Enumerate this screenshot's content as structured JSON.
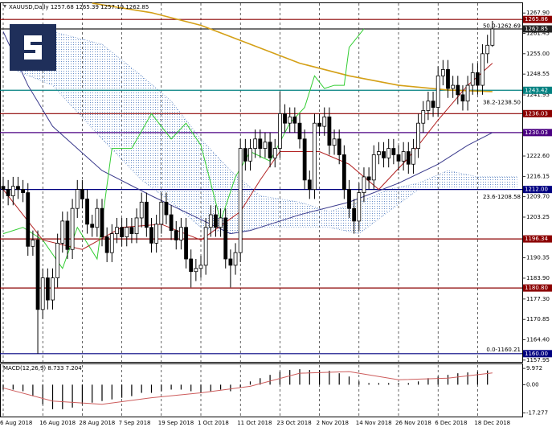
{
  "chart_data": {
    "type": "candlestick",
    "title": "XAUUSD,Daily  1257.68 1265.39 1257.19 1262.85",
    "categories": [
      "6 Aug 2018",
      null,
      null,
      null,
      null,
      null,
      null,
      null,
      "16 Aug 2018",
      null,
      null,
      null,
      null,
      null,
      null,
      null,
      "28 Aug 2018",
      null,
      null,
      null,
      null,
      null,
      null,
      null,
      "7 Sep 2018",
      null,
      null,
      null,
      null,
      null,
      null,
      null,
      "19 Sep 2018",
      null,
      null,
      null,
      null,
      null,
      null,
      null,
      "1 Oct 2018",
      null,
      null,
      null,
      null,
      null,
      null,
      null,
      "11 Oct 2018",
      null,
      null,
      null,
      null,
      null,
      null,
      null,
      "23 Oct 2018",
      null,
      null,
      null,
      null,
      null,
      null,
      null,
      "2 Nov 2018",
      null,
      null,
      null,
      null,
      null,
      null,
      null,
      "14 Nov 2018",
      null,
      null,
      null,
      null,
      null,
      null,
      null,
      "26 Nov 2018",
      null,
      null,
      null,
      null,
      null,
      null,
      null,
      "6 Dec 2018",
      null,
      null,
      null,
      null,
      null,
      null,
      null,
      "18 Dec 2018",
      null,
      null,
      null
    ],
    "open": [
      1213,
      1212,
      1210,
      1213,
      1212,
      1211,
      1194,
      1196,
      1174,
      1184,
      1177,
      1184,
      1195,
      1202,
      1193,
      1206,
      1212,
      1209,
      1201,
      1200,
      1206,
      1197,
      1192,
      1198,
      1200,
      1197,
      1200,
      1198,
      1203,
      1208,
      1200,
      1195,
      1201,
      1208,
      1204,
      1199,
      1196,
      1200,
      1190,
      1186,
      1187,
      1188,
      1200,
      1204,
      1200,
      1203,
      1190,
      1188,
      1192,
      1225,
      1221,
      1225,
      1228,
      1225,
      1227,
      1222,
      1225,
      1236,
      1233,
      1235,
      1233,
      1228,
      1215,
      1212,
      1233,
      1232,
      1235,
      1226,
      1228,
      1223,
      1212,
      1206,
      1202,
      1211,
      1216,
      1215,
      1223,
      1224,
      1222,
      1225,
      1223,
      1221,
      1224,
      1220,
      1225,
      1233,
      1237,
      1240,
      1238,
      1248,
      1250,
      1244,
      1245,
      1242,
      1240,
      1245,
      1249,
      1245,
      1255,
      1257.68
    ],
    "high": [
      1216,
      1215,
      1216,
      1216,
      1215,
      1214,
      1199,
      1199,
      1187,
      1187,
      1187,
      1198,
      1205,
      1205,
      1209,
      1215,
      1215,
      1212,
      1204,
      1209,
      1209,
      1200,
      1201,
      1203,
      1203,
      1203,
      1203,
      1206,
      1211,
      1211,
      1203,
      1204,
      1211,
      1211,
      1207,
      1202,
      1203,
      1203,
      1193,
      1190,
      1191,
      1203,
      1207,
      1207,
      1206,
      1206,
      1193,
      1195,
      1228,
      1228,
      1228,
      1231,
      1231,
      1230,
      1230,
      1228,
      1243,
      1239,
      1238,
      1238,
      1236,
      1231,
      1218,
      1236,
      1236,
      1238,
      1238,
      1231,
      1231,
      1226,
      1215,
      1209,
      1214,
      1219,
      1219,
      1226,
      1227,
      1227,
      1228,
      1228,
      1226,
      1227,
      1227,
      1228,
      1236,
      1240,
      1243,
      1243,
      1251,
      1253,
      1253,
      1248,
      1248,
      1245,
      1248,
      1252,
      1252,
      1258,
      1261,
      1265.39
    ],
    "low": [
      1209,
      1207,
      1207,
      1209,
      1208,
      1191,
      1191,
      1160,
      1171,
      1174,
      1174,
      1181,
      1192,
      1190,
      1190,
      1203,
      1206,
      1198,
      1197,
      1197,
      1194,
      1189,
      1189,
      1195,
      1194,
      1194,
      1195,
      1195,
      1200,
      1197,
      1192,
      1192,
      1198,
      1201,
      1196,
      1193,
      1193,
      1187,
      1181,
      1183,
      1184,
      1185,
      1197,
      1197,
      1197,
      1187,
      1181,
      1185,
      1189,
      1218,
      1218,
      1222,
      1222,
      1222,
      1219,
      1219,
      1222,
      1230,
      1230,
      1230,
      1225,
      1212,
      1209,
      1209,
      1229,
      1229,
      1223,
      1223,
      1220,
      1209,
      1203,
      1198,
      1199,
      1208,
      1212,
      1212,
      1220,
      1219,
      1219,
      1220,
      1218,
      1218,
      1217,
      1217,
      1222,
      1230,
      1234,
      1235,
      1235,
      1245,
      1241,
      1241,
      1239,
      1237,
      1237,
      1242,
      1242,
      1242,
      1252,
      1257.19
    ],
    "close": [
      1212,
      1210,
      1213,
      1212,
      1211,
      1194,
      1196,
      1174,
      1184,
      1177,
      1184,
      1195,
      1202,
      1193,
      1206,
      1212,
      1209,
      1201,
      1200,
      1206,
      1197,
      1192,
      1198,
      1200,
      1197,
      1200,
      1198,
      1203,
      1208,
      1200,
      1195,
      1201,
      1208,
      1204,
      1199,
      1196,
      1200,
      1190,
      1186,
      1187,
      1188,
      1200,
      1204,
      1200,
      1203,
      1190,
      1188,
      1192,
      1225,
      1221,
      1225,
      1228,
      1225,
      1227,
      1222,
      1225,
      1236,
      1233,
      1235,
      1233,
      1228,
      1215,
      1212,
      1233,
      1232,
      1235,
      1226,
      1228,
      1223,
      1212,
      1206,
      1202,
      1211,
      1216,
      1215,
      1223,
      1224,
      1222,
      1225,
      1223,
      1221,
      1224,
      1220,
      1225,
      1233,
      1237,
      1240,
      1238,
      1248,
      1250,
      1244,
      1245,
      1242,
      1240,
      1245,
      1249,
      1245,
      1255,
      1257.68,
      1262.85
    ],
    "up_color": "#ffffff",
    "down_color": "#000000",
    "ylim": [
      1157.4,
      1271.0
    ],
    "yticks": [
      {
        "value": 1267.9,
        "label": "1267.90"
      },
      1261.45,
      {
        "value": 1255,
        "label": "1255.00"
      },
      1248.55,
      1241.95,
      {
        "value": 1222.6,
        "label": "1222.60"
      },
      1216.15,
      {
        "value": 1209.7,
        "label": "1209.70"
      },
      1203.25,
      1190.35,
      {
        "value": 1183.9,
        "label": "1183.90"
      },
      {
        "value": 1177.3,
        "label": "1177.30"
      },
      1170.85,
      {
        "value": 1164.4,
        "label": "1164.40"
      },
      1157.95
    ],
    "levels": [
      {
        "value": 1265.86,
        "color": "#8b0000"
      },
      {
        "value": 1262.85,
        "color": "#222222"
      },
      {
        "value": 1243.42,
        "color": "#008080"
      },
      {
        "value": 1236.03,
        "color": "#8b0000"
      },
      {
        "value": 1230.03,
        "color": "#4b0082"
      },
      {
        "value": 1212,
        "label": "1212.00",
        "color": "#000080"
      },
      {
        "value": 1196.34,
        "color": "#8b0000"
      },
      {
        "value": 1180.8,
        "label": "1180.80",
        "color": "#8b0000"
      },
      {
        "value": 1160,
        "label": "1160.00",
        "color": "#000080"
      }
    ],
    "fib": [
      {
        "value": 1262.69,
        "label": "50.0-1262.69"
      },
      {
        "value": 1238.5,
        "label": "38.2-1238.50"
      },
      {
        "value": 1208.58,
        "label": "23.6-1208.58"
      },
      {
        "value": 1160.21,
        "label": "0.0-1160.21"
      }
    ],
    "lines": [
      {
        "color": "#d4a017",
        "x": [
          18,
          30,
          40,
          50,
          60,
          70,
          80,
          90,
          99
        ],
        "values": [
          1271,
          1268,
          1264,
          1258,
          1252,
          1248,
          1245,
          1243.5,
          1243
        ]
      },
      {
        "color": "#3a3a8c",
        "x": [
          0,
          5,
          10,
          20,
          30,
          38,
          46,
          50,
          60,
          70,
          80,
          88,
          94,
          99
        ],
        "values": [
          1262,
          1245,
          1232,
          1218,
          1210,
          1204,
          1198,
          1199,
          1204,
          1208,
          1214,
          1220,
          1226,
          1230
        ]
      },
      {
        "color": "#32cd32",
        "x": [
          0,
          4,
          8,
          12,
          15,
          19,
          22,
          26,
          30,
          34,
          37,
          40,
          44,
          47,
          50,
          54,
          58,
          61,
          63,
          65,
          67,
          69,
          70,
          73
        ],
        "values": [
          1198,
          1200,
          1196,
          1187,
          1200,
          1190,
          1225,
          1225,
          1236,
          1228,
          1233,
          1226,
          1202,
          1216,
          1224,
          1221,
          1233,
          1238,
          1248,
          1244,
          1245,
          1245,
          1257,
          1262.85
        ]
      },
      {
        "color": "#b22222",
        "x": [
          0,
          8,
          16,
          24,
          32,
          40,
          48,
          52,
          56,
          64,
          70,
          76,
          82,
          88,
          94,
          99
        ],
        "values": [
          1212,
          1196,
          1193,
          1200,
          1201,
          1196,
          1205,
          1215,
          1224,
          1224,
          1220,
          1212,
          1222,
          1234,
          1245,
          1252
        ]
      }
    ],
    "cloud": {
      "color": "#6a8fc8",
      "upper": {
        "x": [
          2,
          10,
          20,
          28,
          34,
          40,
          46,
          52,
          60,
          66,
          72,
          78,
          84,
          90,
          96,
          104
        ],
        "values": [
          1262,
          1262,
          1258,
          1248,
          1240,
          1228,
          1218,
          1210,
          1208,
          1205,
          1208,
          1212,
          1214,
          1218,
          1216,
          1216
        ]
      },
      "lower": {
        "x": [
          2,
          10,
          20,
          28,
          34,
          40,
          46,
          52,
          60,
          66,
          72,
          78,
          84,
          90,
          96,
          104
        ],
        "values": [
          1250,
          1245,
          1228,
          1215,
          1208,
          1200,
          1198,
          1200,
          1200,
          1200,
          1198,
          1205,
          1212,
          1212,
          1212,
          1212
        ]
      }
    },
    "macd": {
      "title": "MACD(12,26,9) 8.733 7.204",
      "ylim": [
        -19,
        11.5
      ],
      "yticks": [
        9.972,
        {
          "value": 0,
          "label": "0.00"
        },
        -17.277
      ],
      "histogram": {
        "color": "#000000",
        "x": [
          0,
          2,
          4,
          6,
          8,
          10,
          12,
          14,
          16,
          18,
          20,
          22,
          24,
          26,
          28,
          30,
          32,
          34,
          36,
          38,
          40,
          42,
          44,
          46,
          48,
          50,
          52,
          54,
          56,
          58,
          60,
          62,
          64,
          66,
          68,
          70,
          72,
          74,
          76,
          78,
          80,
          82,
          84,
          86,
          88,
          90,
          92,
          94,
          96,
          98
        ],
        "values": [
          -3,
          -3,
          -4,
          -7,
          -12,
          -15,
          -15,
          -14,
          -12,
          -11,
          -10,
          -9,
          -8,
          -7,
          -5,
          -5,
          -4,
          -3,
          -3,
          -4,
          -5,
          -4,
          -3,
          -4,
          -2,
          2,
          4,
          6,
          8,
          9,
          9.5,
          9,
          9,
          8.5,
          7,
          5,
          2,
          1,
          1,
          1,
          1,
          1,
          2,
          4,
          5,
          6,
          7,
          7.5,
          8,
          8.7
        ]
      },
      "signal": {
        "color": "#cd5c5c",
        "x": [
          0,
          10,
          20,
          30,
          40,
          50,
          60,
          70,
          80,
          90,
          99
        ],
        "values": [
          -2,
          -10,
          -12,
          -8,
          -5,
          -1,
          7,
          8,
          3,
          4,
          7.2
        ]
      }
    }
  }
}
